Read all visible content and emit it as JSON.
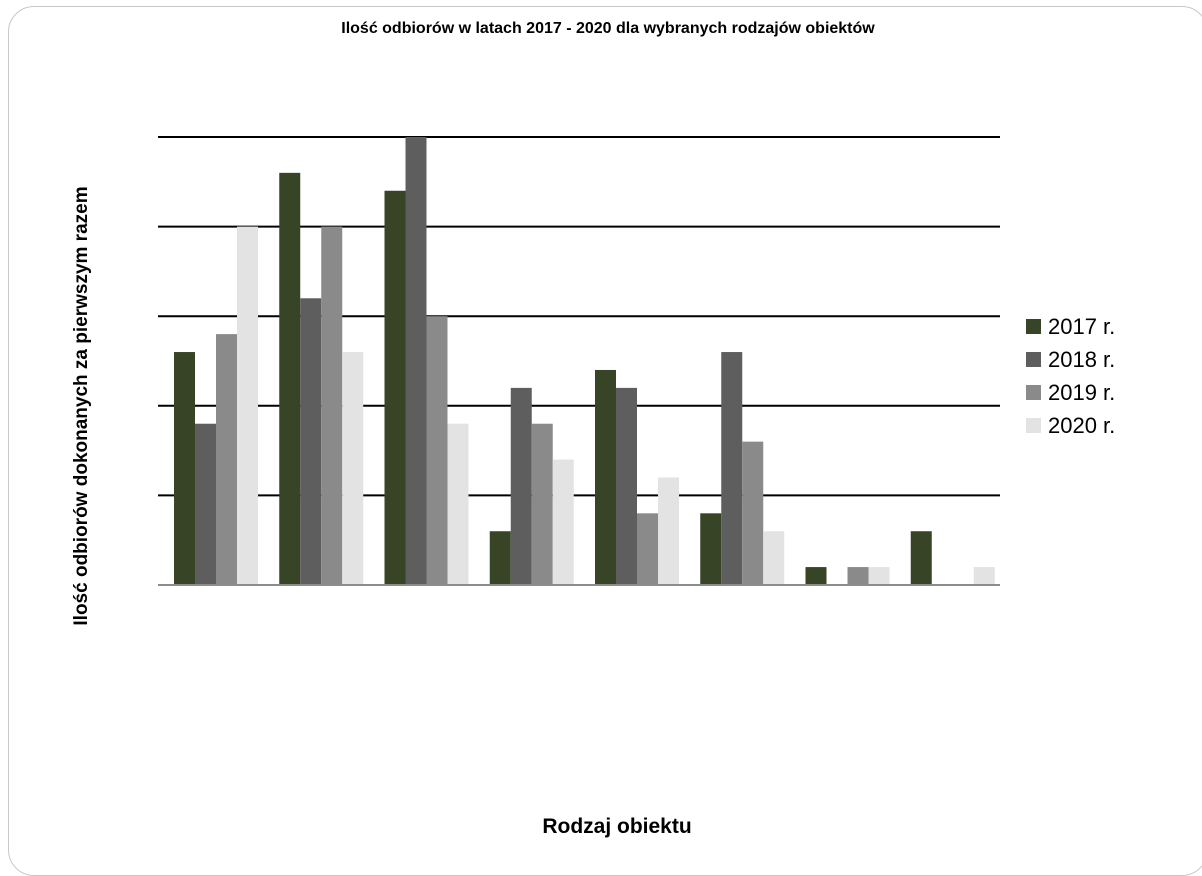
{
  "chart_data": {
    "type": "bar",
    "title": "Ilość odbiorów w latach 2017 - 2020 dla wybranych rodzajów obiektów",
    "xlabel": "Rodzaj obiektu",
    "ylabel": "Ilość odbiorów dokonanych za pierwszym razem",
    "categories": [
      "",
      "",
      "",
      "",
      "",
      "",
      "",
      ""
    ],
    "ylim": [
      0,
      25
    ],
    "grid": true,
    "legend_position": "right",
    "series": [
      {
        "name": "2017 r.",
        "color": "#374426",
        "values": [
          13,
          23,
          22,
          3,
          12,
          4,
          1,
          3
        ]
      },
      {
        "name": "2018 r.",
        "color": "#5e5e5e",
        "values": [
          9,
          16,
          25,
          11,
          11,
          13,
          0,
          0
        ]
      },
      {
        "name": "2019 r.",
        "color": "#8a8a8a",
        "values": [
          14,
          20,
          15,
          9,
          4,
          8,
          1,
          0
        ]
      },
      {
        "name": "2020 r.",
        "color": "#e3e3e3",
        "values": [
          20,
          13,
          9,
          7,
          6,
          3,
          1,
          1
        ]
      }
    ]
  }
}
